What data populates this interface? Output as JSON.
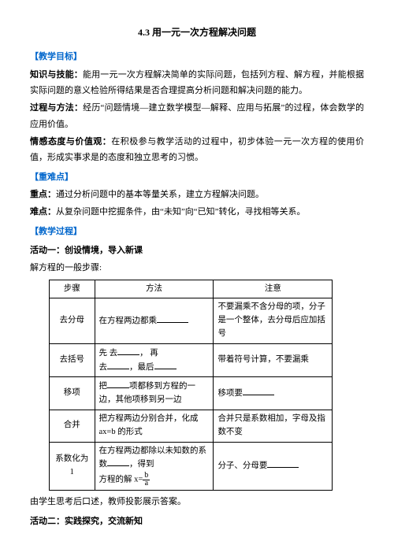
{
  "title": "4.3 用一元一次方程解决问题",
  "sections": {
    "objective": {
      "label": "【教学目标】",
      "knowledge_label": "知识与技能：",
      "knowledge_text": "能用一元一次方程解决简单的实际问题，包括列方程、解方程，并能根据实际问题的意义检验所得结果是否合理提高分析问题和解决问题的能力。",
      "process_label": "过程与方法：",
      "process_text": "经历“问题情境—建立数学模型—解释、应用与拓展”的过程，体会数学的应用价值。",
      "attitude_label": "情感态度与价值观：",
      "attitude_text": "在积极参与教学活动的过程中，初步体验一元一次方程的使用价值，形成实事求是的态度和独立思考的习惯。"
    },
    "keypoints": {
      "label": "【重难点】",
      "key_label": "重点：",
      "key_text": "通过分析问题中的基本等量关系，建立方程解决问题。",
      "diff_label": "难点：",
      "diff_text": "从复杂问题中挖掘条件，由“未知”向“已知”转化，寻找相等关系。"
    },
    "process_section": {
      "label": "【教学过程】",
      "activity1": "活动一：创设情境，导入新课",
      "activity1_text": "解方程的一般步骤:",
      "activity2": "活动二：实践探究，交流新知",
      "footer_text": "由学生思考后口述，教师投影展示答案。"
    }
  },
  "table": {
    "headers": [
      "步骤",
      "方法",
      "注意"
    ],
    "rows": [
      {
        "step": "去分母",
        "method_prefix": "在方程两边都乘",
        "note": "不要漏乘不含分母的项，分子是一个整体，去分母后应加括号"
      },
      {
        "step": "去括号",
        "method_p1": "先 去",
        "method_p2": "， 再",
        "method_p3": "去",
        "method_p4": "，最后",
        "note": "带着符号计算，不要漏乘"
      },
      {
        "step": "移项",
        "method_p1": "把",
        "method_p2": "项都移到方程的一边，其他项移到另一边",
        "note_prefix": "移项要"
      },
      {
        "step": "合并",
        "method": "把方程两边分别合并，化成 ax=b 的形式",
        "note": "合并只是系数相加，字母及指数不变"
      },
      {
        "step": "系数化为 1",
        "method_p1": "在方程两边都除以未知数的系数",
        "method_p2": "，得到",
        "method_p3": "方程的解 x=",
        "frac_top": "b",
        "frac_bot": "a",
        "note": "分子、分母要"
      }
    ]
  },
  "colors": {
    "blue": "#0066cc",
    "text": "#000000",
    "bg": "#ffffff"
  }
}
